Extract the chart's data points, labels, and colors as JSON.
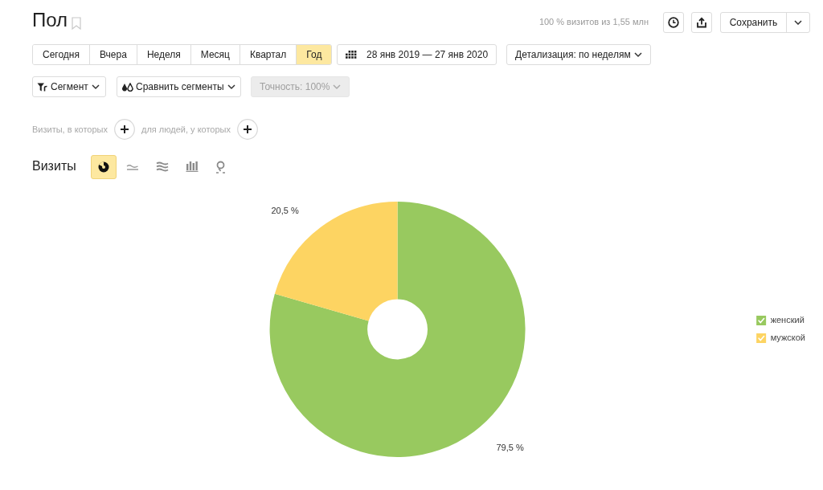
{
  "chart_data": {
    "type": "donut",
    "title": "Пол",
    "subtitle": "Визиты",
    "categories": [
      "женский",
      "мужской"
    ],
    "values": [
      79.5,
      20.5
    ],
    "colors": [
      "#98c95f",
      "#fdd462"
    ],
    "value_labels": [
      "79,5 %",
      "20,5 %"
    ],
    "legend": "right",
    "annotations": [
      "100 % визитов из 1,55 млн",
      "Сохранить",
      "Сегодня",
      "Вчера",
      "Неделя",
      "Месяц",
      "Квартал",
      "Год",
      "28 янв 2019 — 27 янв 2020",
      "Детализация: по неделям",
      "Сегмент",
      "Сравнить сегменты",
      "Точность: 100%",
      "Визиты, в которых",
      "для людей, у которых"
    ]
  }
}
